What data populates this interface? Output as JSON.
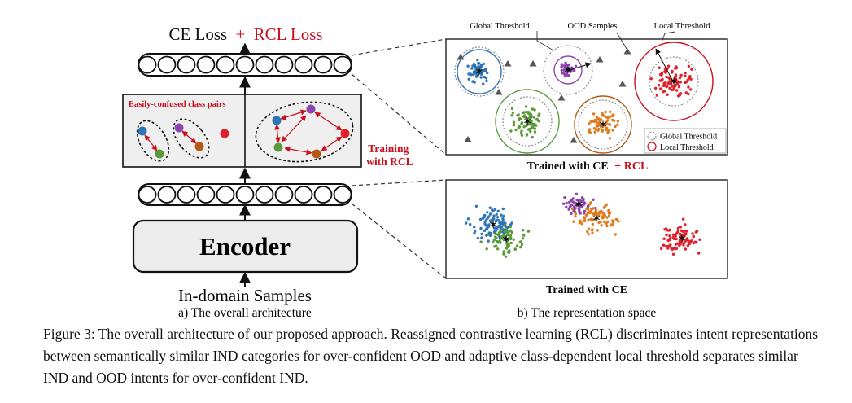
{
  "figure": {
    "loss": {
      "ce": "CE Loss",
      "plus": "+",
      "rcl": "RCL Loss"
    },
    "confused_label": "Easily-confused class pairs",
    "training_label": [
      "Training",
      "with RCL"
    ],
    "encoder_label": "Encoder",
    "input_label": "In-domain Samples",
    "subcaption_a": "a) The overall architecture",
    "subcaption_b": "b) The representation space",
    "top_panel": {
      "global_threshold_label": "Global Threshold",
      "ood_samples_label": "OOD Samples",
      "local_threshold_label": "Local Threshold",
      "legend": {
        "global": "Global Threshold",
        "local": "Local Threshold"
      },
      "title_prefix": "Trained with CE",
      "title_suffix": "+ RCL"
    },
    "bottom_panel": {
      "title": "Trained with CE"
    },
    "colors": {
      "blue": "#2f74b5",
      "purple": "#8e44ad",
      "green": "#5a9a3a",
      "orange": "#e07b1e",
      "red": "#e0202a",
      "accent_red": "#cc1020",
      "panel_fill": "#efefef",
      "encoder_fill": "#ececec"
    }
  },
  "caption": {
    "lead": "Figure 3:",
    "text": "The overall architecture of our proposed approach. Reassigned contrastive learning (RCL) discriminates intent representations between semantically similar IND categories for over-confident OOD and adaptive class-dependent local threshold separates similar IND and OOD intents for over-confident IND."
  }
}
